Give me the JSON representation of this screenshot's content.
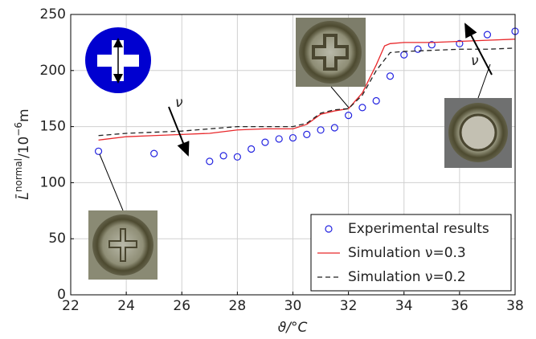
{
  "chart_data": {
    "type": "line",
    "xlabel": "ϑ/°C",
    "ylabel_parts": [
      "L̄",
      "normal",
      "/10",
      "−6",
      "m"
    ],
    "xlim": [
      22,
      38
    ],
    "ylim": [
      0,
      250
    ],
    "xticks": [
      22,
      24,
      26,
      28,
      30,
      32,
      34,
      36,
      38
    ],
    "yticks": [
      0,
      50,
      100,
      150,
      200,
      250
    ],
    "grid": true,
    "legend": "lower right",
    "annotations": [
      "ν",
      "ν"
    ],
    "series": [
      {
        "name": "Experimental results",
        "type": "scatter",
        "color": "#2323e0",
        "x": [
          23,
          25,
          27,
          27.5,
          28,
          28.5,
          29,
          29.5,
          30,
          30.5,
          31,
          31.5,
          32,
          32.5,
          33,
          33.5,
          34,
          34.5,
          35,
          36,
          37,
          38
        ],
        "values": [
          128,
          126,
          119,
          124,
          123,
          130,
          136,
          139,
          140,
          143,
          147,
          149,
          160,
          167,
          173,
          195,
          214,
          219,
          223,
          224,
          232,
          235
        ]
      },
      {
        "name": "Simulation ν=0.3",
        "type": "line",
        "color": "#e8272a",
        "dashed": false,
        "x": [
          23,
          24,
          25,
          26,
          27,
          28,
          29,
          30,
          30.5,
          31,
          31.5,
          32,
          32.5,
          33,
          33.3,
          33.5,
          34,
          35,
          36,
          37,
          38
        ],
        "values": [
          138,
          141,
          142,
          143,
          144,
          147,
          148,
          148,
          152,
          161,
          164,
          166,
          180,
          205,
          222,
          224,
          225,
          225,
          226,
          227,
          228
        ]
      },
      {
        "name": "Simulation ν=0.2",
        "type": "line",
        "color": "#222222",
        "dashed": true,
        "x": [
          23,
          24,
          25,
          26,
          27,
          28,
          29,
          30,
          30.5,
          31,
          31.5,
          32,
          32.5,
          33,
          33.5,
          34,
          35,
          36,
          37,
          38
        ],
        "values": [
          142,
          144,
          145,
          146,
          148,
          150,
          150,
          150,
          153,
          162,
          165,
          166,
          178,
          200,
          216,
          217,
          218,
          219,
          219,
          220
        ]
      }
    ]
  }
}
